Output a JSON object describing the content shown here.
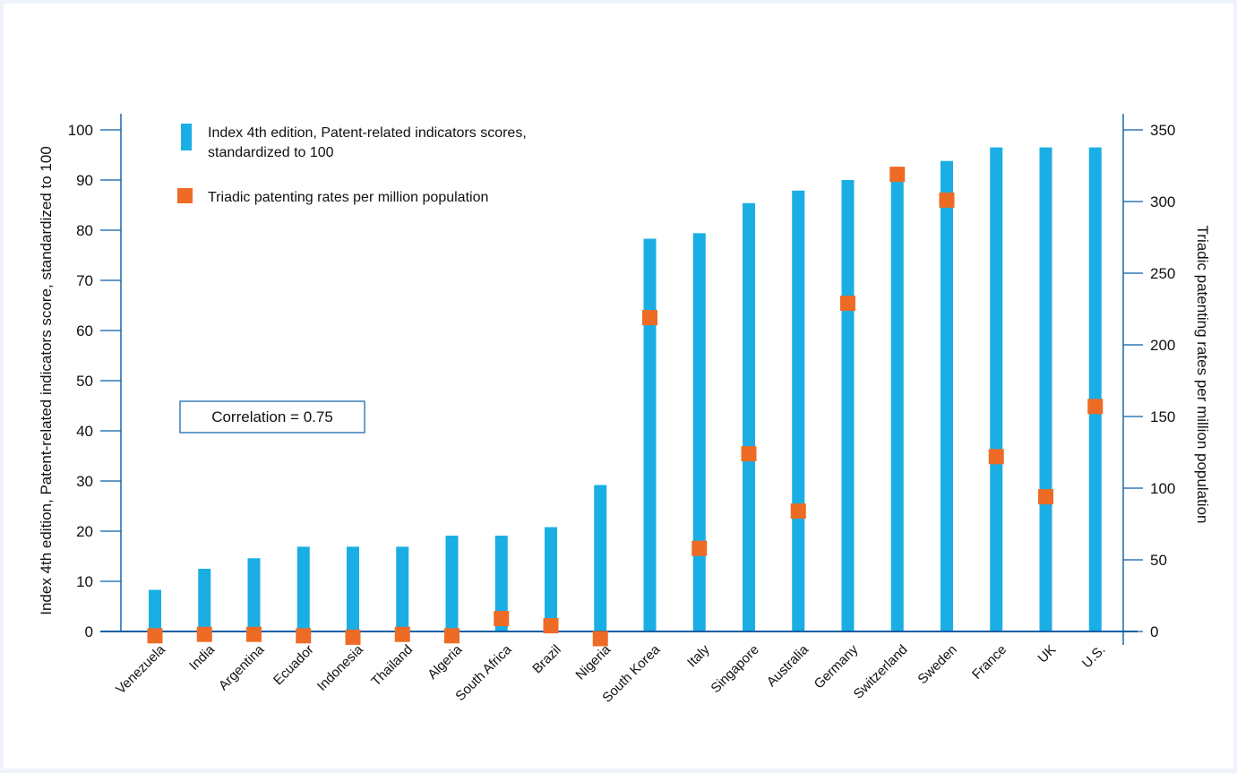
{
  "chart_data": {
    "type": "bar",
    "categories": [
      "Venezuela",
      "India",
      "Argentina",
      "Ecuador",
      "Indonesia",
      "Thailand",
      "Algeria",
      "South Africa",
      "Brazil",
      "Nigeria",
      "South Korea",
      "Italy",
      "Singapore",
      "Australia",
      "Germany",
      "Switzerland",
      "Sweden",
      "France",
      "UK",
      "U.S."
    ],
    "series": [
      {
        "name": "Index 4th edition, Patent-related indicators scores, standardized to 100",
        "axis": "left",
        "mark": "bar",
        "color": "#1aaee5",
        "values": [
          8.3,
          12.5,
          14.6,
          16.9,
          16.9,
          16.9,
          19.1,
          19.1,
          20.8,
          29.2,
          78.3,
          79.4,
          85.4,
          87.9,
          90.0,
          91.9,
          93.8,
          96.5,
          96.5,
          96.5
        ]
      },
      {
        "name": "Triadic patenting rates per million population",
        "axis": "right",
        "mark": "square",
        "color": "#ee6b25",
        "values": [
          -3,
          -2,
          -2,
          -3,
          -4,
          -2,
          -3,
          9,
          4,
          -5,
          219,
          58,
          124,
          84,
          229,
          319,
          301,
          122,
          94,
          157
        ]
      }
    ],
    "legend": [
      {
        "label": "Index 4th edition, Patent-related indicators scores,",
        "label2": "standardized to 100"
      },
      {
        "label": "Triadic patenting rates per million population"
      }
    ],
    "ylabel": "Index 4th edition, Patent-related indicators score, standardized to 100",
    "y2label": "Triadic patenting rates per million population",
    "ylim": [
      0,
      100
    ],
    "y2lim": [
      0,
      350
    ],
    "yticks": [
      "0",
      "10",
      "20",
      "30",
      "40",
      "50",
      "60",
      "70",
      "80",
      "90",
      "100"
    ],
    "y2ticks": [
      "0",
      "50",
      "100",
      "150",
      "200",
      "250",
      "300",
      "350"
    ],
    "annotation": "Correlation = 0.75"
  }
}
